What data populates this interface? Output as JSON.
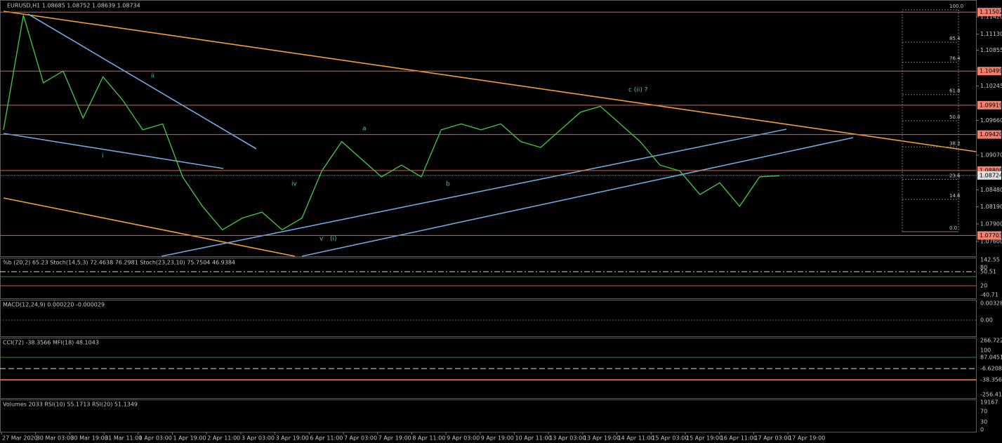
{
  "header": {
    "symbol_info": "EURUSD,H1  1.08685 1.08752 1.08639 1.08734"
  },
  "price_panel": {
    "values": [
      1.095,
      1.1145,
      1.103,
      1.105,
      1.097,
      1.104,
      1.1,
      1.095,
      1.096,
      1.087,
      1.082,
      1.078,
      1.08,
      1.081,
      1.078,
      1.08,
      1.088,
      1.093,
      1.09,
      1.087,
      1.089,
      1.087,
      1.095,
      1.096,
      1.095,
      1.096,
      1.093,
      1.092,
      1.095,
      1.098,
      1.099,
      1.096,
      1.093,
      1.089,
      1.088,
      1.084,
      1.086,
      1.082,
      1.087,
      1.0872
    ],
    "ylim": [
      1.0735,
      1.1166
    ],
    "axis_labels": [
      {
        "value": 1.1142,
        "label": "1.11420"
      },
      {
        "value": 1.1113,
        "label": "1.11130"
      },
      {
        "value": 1.10855,
        "label": "1.10855"
      },
      {
        "value": 1.10245,
        "label": "1.10245"
      },
      {
        "value": 1.0966,
        "label": "1.09660"
      },
      {
        "value": 1.0907,
        "label": "1.09070"
      },
      {
        "value": 1.0848,
        "label": "1.08480"
      },
      {
        "value": 1.0819,
        "label": "1.08190"
      },
      {
        "value": 1.079,
        "label": "1.07900"
      },
      {
        "value": 1.076,
        "label": "1.07600"
      }
    ],
    "levels": [
      {
        "value": 1.11502,
        "label": "1.11502"
      },
      {
        "value": 1.10499,
        "label": "1.10499"
      },
      {
        "value": 1.09919,
        "label": "1.09919"
      },
      {
        "value": 1.0942,
        "label": "1.09420"
      },
      {
        "value": 1.08808,
        "label": "1.08808"
      },
      {
        "value": 1.07703,
        "label": "1.07703"
      }
    ],
    "current_price": {
      "value": 1.08724,
      "label": "1.08724"
    },
    "wave_labels": [
      "i",
      "ii",
      "iv",
      "v",
      "(i)",
      "a",
      "b",
      "c  (ii) ?"
    ],
    "fib_levels": [
      {
        "value": 100,
        "label": "100.0"
      },
      {
        "value": 85.4,
        "label": "85.4"
      },
      {
        "value": 76.4,
        "label": "76.4"
      },
      {
        "value": 61.8,
        "label": "61.8"
      },
      {
        "value": 50,
        "label": "50.0"
      },
      {
        "value": 38.2,
        "label": "38.2"
      },
      {
        "value": 23.6,
        "label": "23.6"
      },
      {
        "value": 14.6,
        "label": "14.6"
      },
      {
        "value": 0,
        "label": "0.0"
      }
    ]
  },
  "indicator_panels": [
    {
      "title": "%b (20,2) 65.23  Stoch(14,5,3) 72.4638 76.2981  Stoch(23,23,10) 75.7504 46.9384",
      "axis_labels": [
        "142.55",
        "80",
        "50.51",
        "20",
        "-40.71"
      ]
    },
    {
      "title": "MACD(12,24,9) 0.000220 -0.000029",
      "axis_labels": [
        "0.003283",
        "0.00"
      ]
    },
    {
      "title": "CCI(72) -38.3566  MFI(18) 48.1043",
      "axis_labels": [
        "266.7224",
        "100",
        "87.0451",
        "-6.6208",
        "-38.3567",
        "-256.4145"
      ]
    },
    {
      "title": "Volumes 2033  RSI(10) 55.1713  RSI(20) 51.1349",
      "axis_labels": [
        "19167",
        "70",
        "30",
        "0"
      ]
    }
  ],
  "time_axis": [
    "27 Mar 2020",
    "30 Mar 03:00",
    "30 Mar 19:00",
    "31 Mar 11:00",
    "1 Apr 03:00",
    "1 Apr 19:00",
    "2 Apr 11:00",
    "3 Apr 03:00",
    "3 Apr 19:00",
    "6 Apr 11:00",
    "7 Apr 03:00",
    "7 Apr 19:00",
    "8 Apr 11:00",
    "9 Apr 03:00",
    "9 Apr 19:00",
    "10 Apr 11:00",
    "13 Apr 03:00",
    "13 Apr 19:00",
    "14 Apr 11:00",
    "15 Apr 03:00",
    "15 Apr 19:00",
    "16 Apr 11:00",
    "17 Apr 03:00",
    "17 Apr 19:00"
  ]
}
